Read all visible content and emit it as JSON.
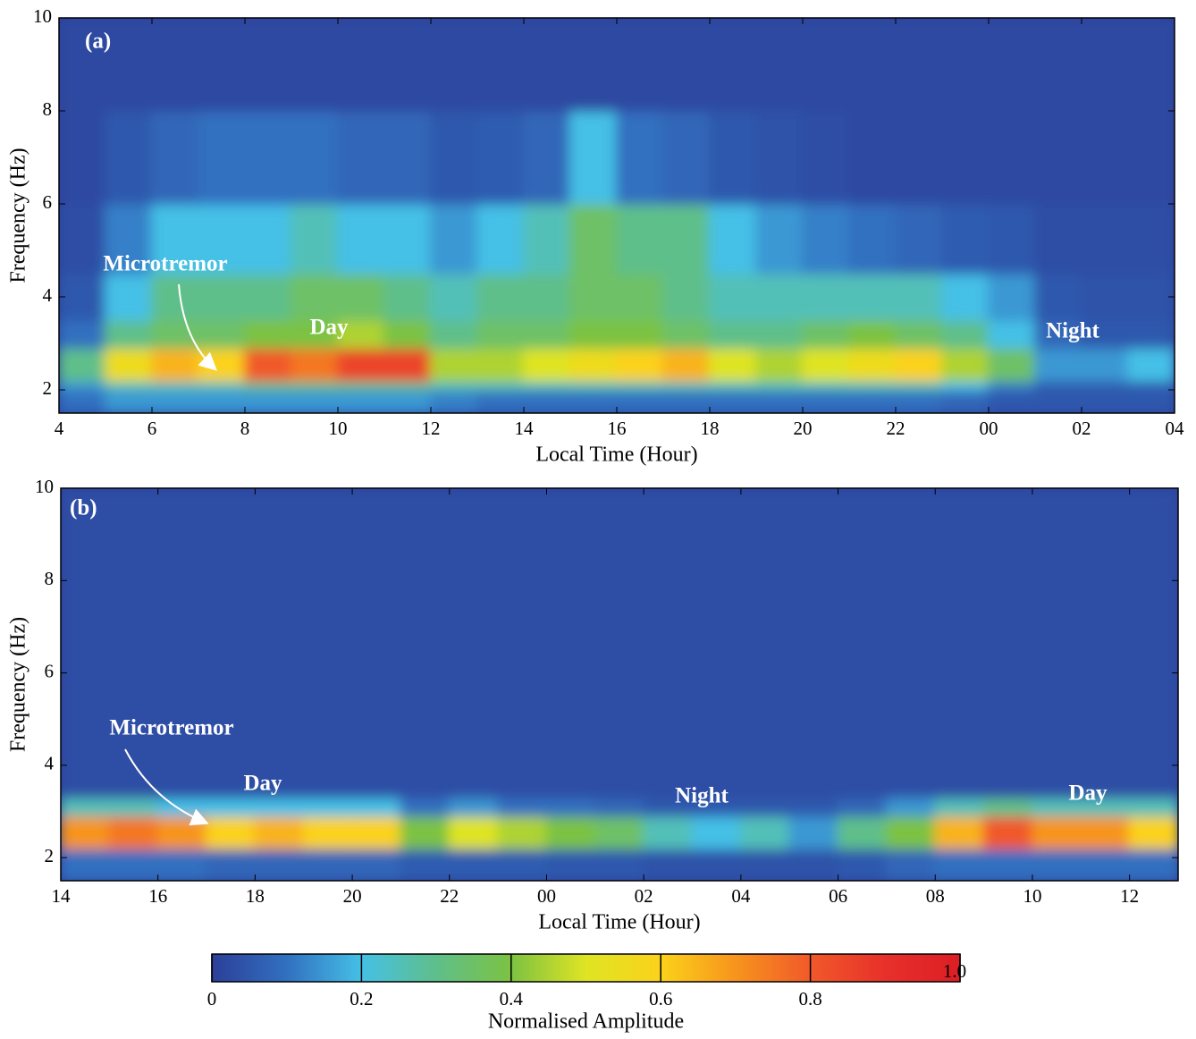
{
  "chart_data": [
    {
      "type": "heatmap",
      "x_label": "Local Time (Hour)",
      "y_label": "Frequency (Hz)",
      "xlim": [
        4,
        28
      ],
      "ylim": [
        1.5,
        10
      ],
      "xticks": [
        4,
        6,
        8,
        10,
        12,
        14,
        16,
        18,
        20,
        22,
        {
          "value": 24,
          "label": "00"
        },
        {
          "value": 26,
          "label": "02"
        },
        {
          "value": 28,
          "label": "04"
        }
      ],
      "yticks": [
        2,
        4,
        6,
        8,
        10
      ],
      "x_bins": [
        4,
        5,
        6,
        7,
        8,
        9,
        10,
        11,
        12,
        13,
        14,
        15,
        16,
        17,
        18,
        19,
        20,
        21,
        22,
        23,
        24,
        25,
        26,
        27,
        28
      ],
      "y_bins": [
        1.5,
        2,
        2.2,
        2.9,
        3.5,
        4.5,
        6,
        8,
        10
      ],
      "values": [
        [
          0.1,
          0.15,
          0.15,
          0.15,
          0.15,
          0.15,
          0.15,
          0.15,
          0.12,
          0.1,
          0.1,
          0.1,
          0.1,
          0.1,
          0.1,
          0.1,
          0.1,
          0.1,
          0.1,
          0.08,
          0.05,
          0.05,
          0.05,
          0.05
        ],
        [
          0.15,
          0.25,
          0.25,
          0.25,
          0.3,
          0.3,
          0.3,
          0.3,
          0.25,
          0.25,
          0.25,
          0.25,
          0.25,
          0.25,
          0.25,
          0.25,
          0.25,
          0.25,
          0.25,
          0.2,
          0.12,
          0.06,
          0.06,
          0.06
        ],
        [
          0.3,
          0.55,
          0.65,
          0.6,
          0.8,
          0.75,
          0.85,
          0.85,
          0.45,
          0.45,
          0.5,
          0.55,
          0.6,
          0.65,
          0.5,
          0.45,
          0.5,
          0.55,
          0.6,
          0.45,
          0.35,
          0.15,
          0.15,
          0.2
        ],
        [
          0.1,
          0.3,
          0.35,
          0.35,
          0.4,
          0.4,
          0.45,
          0.4,
          0.3,
          0.35,
          0.35,
          0.4,
          0.4,
          0.35,
          0.3,
          0.3,
          0.35,
          0.4,
          0.35,
          0.3,
          0.2,
          0.08,
          0.05,
          0.05
        ],
        [
          0.05,
          0.2,
          0.3,
          0.3,
          0.3,
          0.35,
          0.35,
          0.3,
          0.25,
          0.3,
          0.3,
          0.35,
          0.35,
          0.3,
          0.25,
          0.25,
          0.25,
          0.25,
          0.25,
          0.2,
          0.15,
          0.05,
          0.04,
          0.04
        ],
        [
          0.03,
          0.12,
          0.2,
          0.2,
          0.2,
          0.25,
          0.2,
          0.2,
          0.15,
          0.2,
          0.25,
          0.35,
          0.3,
          0.3,
          0.2,
          0.15,
          0.12,
          0.1,
          0.08,
          0.06,
          0.05,
          0.03,
          0.03,
          0.03
        ],
        [
          0.02,
          0.05,
          0.08,
          0.1,
          0.1,
          0.1,
          0.08,
          0.08,
          0.05,
          0.06,
          0.08,
          0.2,
          0.1,
          0.08,
          0.05,
          0.04,
          0.03,
          0.02,
          0.02,
          0.02,
          0.02,
          0.02,
          0.02,
          0.02
        ],
        [
          0.02,
          0.02,
          0.02,
          0.02,
          0.02,
          0.02,
          0.02,
          0.02,
          0.02,
          0.02,
          0.02,
          0.02,
          0.02,
          0.02,
          0.02,
          0.02,
          0.02,
          0.02,
          0.02,
          0.02,
          0.02,
          0.02,
          0.02,
          0.02
        ]
      ],
      "annotations": [
        "(a)",
        "Microtremor",
        "Day",
        "Night"
      ]
    },
    {
      "type": "heatmap",
      "x_label": "Local Time (Hour)",
      "y_label": "Frequency (Hz)",
      "xlim": [
        14,
        37
      ],
      "ylim": [
        1.5,
        10
      ],
      "xticks": [
        14,
        16,
        18,
        20,
        22,
        {
          "value": 24,
          "label": "00"
        },
        {
          "value": 26,
          "label": "02"
        },
        {
          "value": 28,
          "label": "04"
        },
        {
          "value": 30,
          "label": "06"
        },
        {
          "value": 32,
          "label": "08"
        },
        {
          "value": 34,
          "label": "10"
        },
        {
          "value": 36,
          "label": "12"
        }
      ],
      "yticks": [
        2,
        4,
        6,
        8,
        10
      ],
      "x_bins": [
        14,
        15,
        16,
        17,
        18,
        19,
        20,
        21,
        22,
        23,
        24,
        25,
        26,
        27,
        28,
        29,
        30,
        31,
        32,
        33,
        34,
        35,
        36,
        37
      ],
      "y_bins": [
        1.5,
        2.2,
        2.9,
        3.3,
        10
      ],
      "values": [
        [
          0.1,
          0.1,
          0.1,
          0.08,
          0.08,
          0.08,
          0.08,
          0.06,
          0.06,
          0.06,
          0.05,
          0.05,
          0.04,
          0.04,
          0.04,
          0.04,
          0.05,
          0.08,
          0.1,
          0.1,
          0.1,
          0.1,
          0.1
        ],
        [
          0.7,
          0.75,
          0.7,
          0.6,
          0.65,
          0.6,
          0.6,
          0.4,
          0.5,
          0.45,
          0.4,
          0.35,
          0.25,
          0.2,
          0.25,
          0.15,
          0.3,
          0.4,
          0.65,
          0.8,
          0.7,
          0.7,
          0.6
        ],
        [
          0.25,
          0.25,
          0.2,
          0.2,
          0.2,
          0.2,
          0.2,
          0.1,
          0.15,
          0.1,
          0.1,
          0.08,
          0.05,
          0.05,
          0.05,
          0.05,
          0.08,
          0.15,
          0.25,
          0.3,
          0.25,
          0.25,
          0.25
        ],
        [
          0.03,
          0.03,
          0.03,
          0.03,
          0.03,
          0.03,
          0.03,
          0.03,
          0.03,
          0.03,
          0.03,
          0.03,
          0.03,
          0.03,
          0.03,
          0.03,
          0.03,
          0.03,
          0.03,
          0.03,
          0.03,
          0.03,
          0.03
        ]
      ],
      "annotations": [
        "(b)",
        "Microtremor",
        "Day",
        "Night",
        "Day"
      ]
    }
  ],
  "colorbar": {
    "label": "Normalised Amplitude",
    "lim": [
      0,
      1
    ],
    "ticks": [
      0,
      0.2,
      0.4,
      0.6,
      0.8,
      {
        "value": 1,
        "label": "1.0"
      }
    ],
    "colormap": [
      "#2c3f99",
      "#3170c0",
      "#45c0e6",
      "#5fbf8a",
      "#7cc242",
      "#dfe423",
      "#fbd21a",
      "#f7941d",
      "#f1592a",
      "#e7302a",
      "#dc1e25"
    ]
  }
}
